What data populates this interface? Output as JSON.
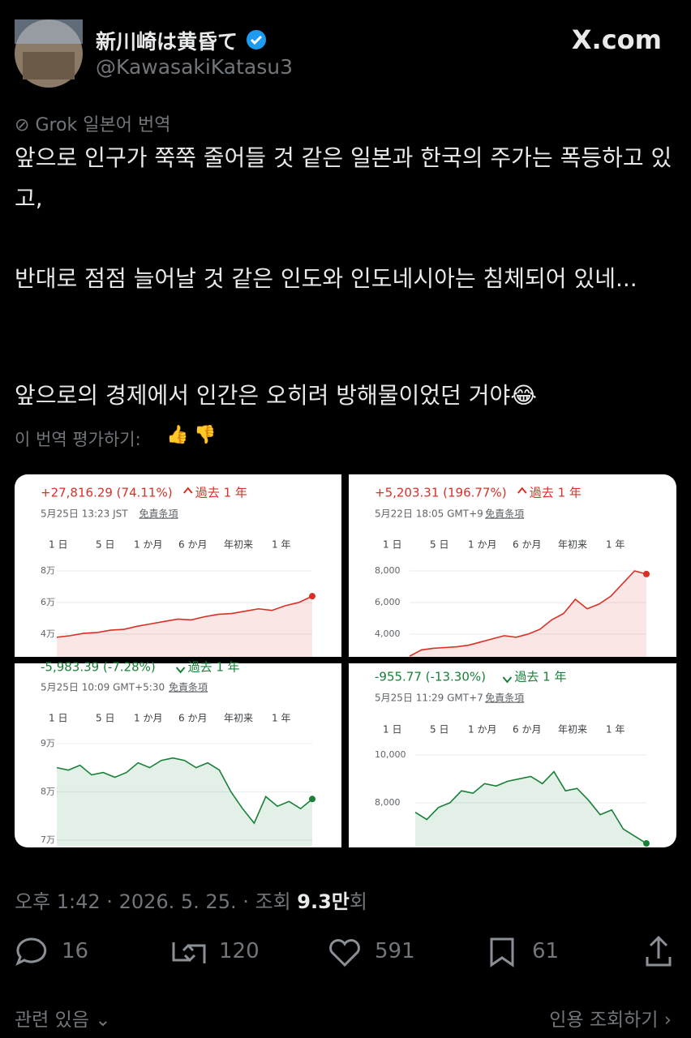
{
  "header": {
    "name": "新川崎は黄昏て",
    "handle": "@KawasakiKatasu3",
    "logo": "X.com"
  },
  "translation": {
    "label": "Grok 일본어 번역",
    "paragraphs": [
      "앞으로 인구가 쭉쭉 줄어들 것 같은 일본과 한국의 주가는 폭등하고 있고,",
      "반대로 점점 늘어날 것 같은 인도와 인도네시아는 침체되어 있네...",
      "앞으로의 경제에서 인간은 오히려 방해물이었던 거야😂"
    ],
    "rate": "이 번역 평가하기:"
  },
  "charts": [
    {
      "type": "line",
      "change": "+27,816.29 (74.11%)",
      "period": "過去 1 年",
      "timestamp": "5月25日 13:23 JST",
      "disclaimer": "免責条項",
      "ranges": [
        "1 日",
        "5 日",
        "1 か月",
        "6 か月",
        "年初来",
        "1 年"
      ],
      "color": "#d93025",
      "ylim": [
        25600,
        84600
      ],
      "yticks": [
        {
          "value": 40000,
          "label": "4万"
        },
        {
          "value": 60000,
          "label": "6万"
        },
        {
          "value": 80000,
          "label": "8万"
        }
      ],
      "values": [
        38000,
        39000,
        40500,
        41000,
        42500,
        43000,
        45000,
        46500,
        48000,
        49500,
        49000,
        51000,
        52500,
        53000,
        54500,
        56000,
        55000,
        58000,
        60000,
        64000
      ]
    },
    {
      "type": "line",
      "change": "+5,203.31 (196.77%)",
      "period": "過去 1 年",
      "timestamp": "5月22日 18:05 GMT+9",
      "disclaimer": "免責条項",
      "ranges": [
        "1 日",
        "5 日",
        "1 か月",
        "6 か月",
        "年初来",
        "1 年"
      ],
      "color": "#d93025",
      "ylim": [
        2560,
        8460
      ],
      "yticks": [
        {
          "value": 4000,
          "label": "4,000"
        },
        {
          "value": 6000,
          "label": "6,000"
        },
        {
          "value": 8000,
          "label": "8,000"
        }
      ],
      "values": [
        2600,
        3000,
        3100,
        3150,
        3200,
        3300,
        3500,
        3700,
        3900,
        3800,
        4000,
        4300,
        4900,
        5300,
        6200,
        5600,
        5900,
        6400,
        7200,
        8000,
        7800
      ]
    },
    {
      "type": "line",
      "change": "-5,983.39 (-7.28%)",
      "period": "過去 1 年",
      "timestamp": "5月25日 10:09 GMT+5:30",
      "disclaimer": "免責条項",
      "ranges": [
        "1 日",
        "5 日",
        "1 か月",
        "6 か月",
        "年初来",
        "1 年"
      ],
      "color": "#188038",
      "ylim": [
        68800,
        92000
      ],
      "yticks": [
        {
          "value": 70000,
          "label": "7万"
        },
        {
          "value": 80000,
          "label": "8万"
        },
        {
          "value": 90000,
          "label": "9万"
        }
      ],
      "values": [
        85000,
        84500,
        85500,
        83500,
        84000,
        83000,
        84000,
        86000,
        85000,
        86500,
        87000,
        86500,
        85000,
        86000,
        84500,
        80000,
        76500,
        73500,
        79000,
        77000,
        78000,
        76500,
        78500
      ]
    },
    {
      "type": "line",
      "change": "-955.77 (-13.30%)",
      "period": "過去 1 年",
      "timestamp": "5月25日 11:29 GMT+7",
      "disclaimer": "免責条項",
      "ranges": [
        "1 日",
        "5 日",
        "1 か月",
        "6 か月",
        "年初来",
        "1 年"
      ],
      "color": "#188038",
      "ylim": [
        6200,
        10540
      ],
      "yticks": [
        {
          "value": 8000,
          "label": "8,000"
        },
        {
          "value": 10000,
          "label": "10,000"
        }
      ],
      "values": [
        7600,
        7300,
        7800,
        8000,
        8500,
        8400,
        8800,
        8700,
        8900,
        9000,
        9100,
        8800,
        9300,
        8500,
        8600,
        8100,
        7500,
        7700,
        6900,
        6600,
        6300
      ]
    }
  ],
  "meta": {
    "time": "오후 1:42 · 2026. 5. 25. · 조회 ",
    "views": "9.3만",
    "suffix": "회"
  },
  "stats": {
    "replies": "16",
    "retweets": "120",
    "likes": "591",
    "bookmarks": "61"
  },
  "footer": {
    "related": "관련 있음",
    "quotes": "인용 조회하기"
  }
}
